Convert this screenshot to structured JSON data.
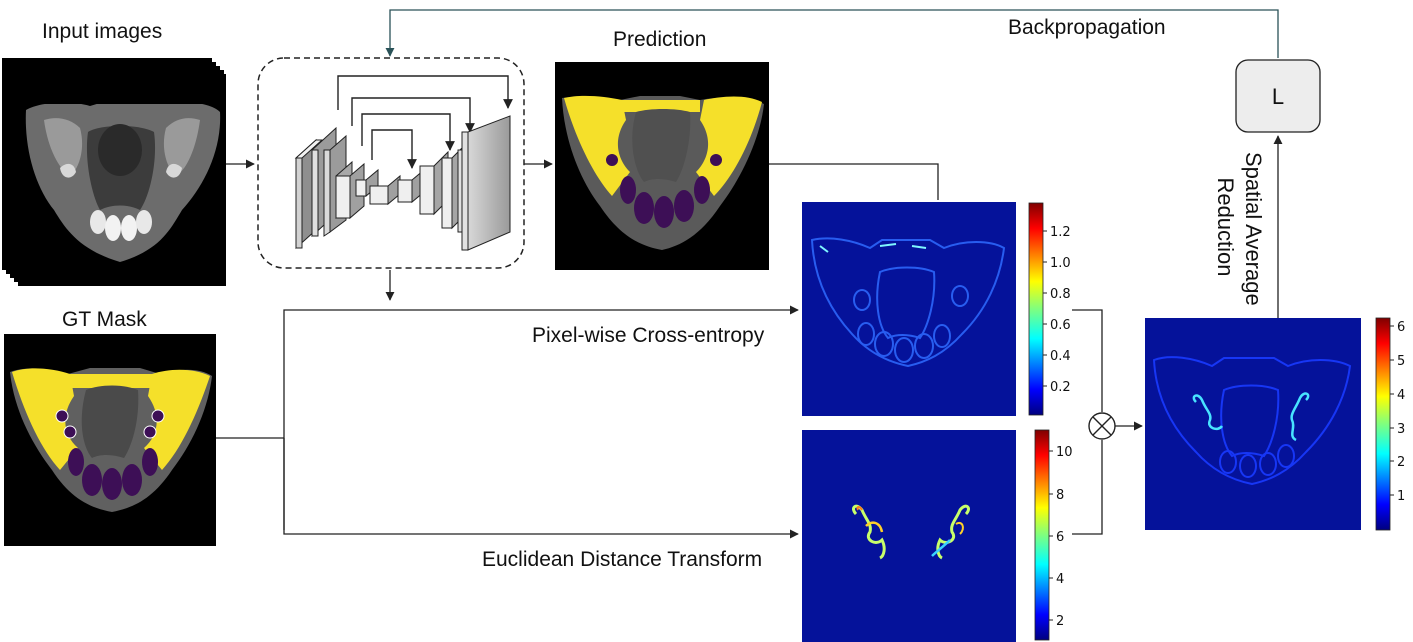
{
  "labels": {
    "input_images": "Input images",
    "prediction": "Prediction",
    "backpropagation": "Backpropagation",
    "gt_mask": "GT Mask",
    "cross_entropy": "Pixel-wise Cross-entropy",
    "distance_transform": "Euclidean Distance Transform",
    "loss": "L",
    "spatial_average": "Spatial Average",
    "reduction": "Reduction"
  },
  "colorbars": {
    "cross_entropy_ticks": [
      "0.2",
      "0.4",
      "0.6",
      "0.8",
      "1.0",
      "1.2"
    ],
    "distance_ticks": [
      "2",
      "4",
      "6",
      "8",
      "10"
    ],
    "weighted_ticks": [
      "1",
      "2",
      "3",
      "4",
      "5",
      "6"
    ]
  },
  "colors": {
    "seg_bone": "#f5e02a",
    "seg_teeth": "#3d0f56",
    "heat_background": "#05129a"
  }
}
